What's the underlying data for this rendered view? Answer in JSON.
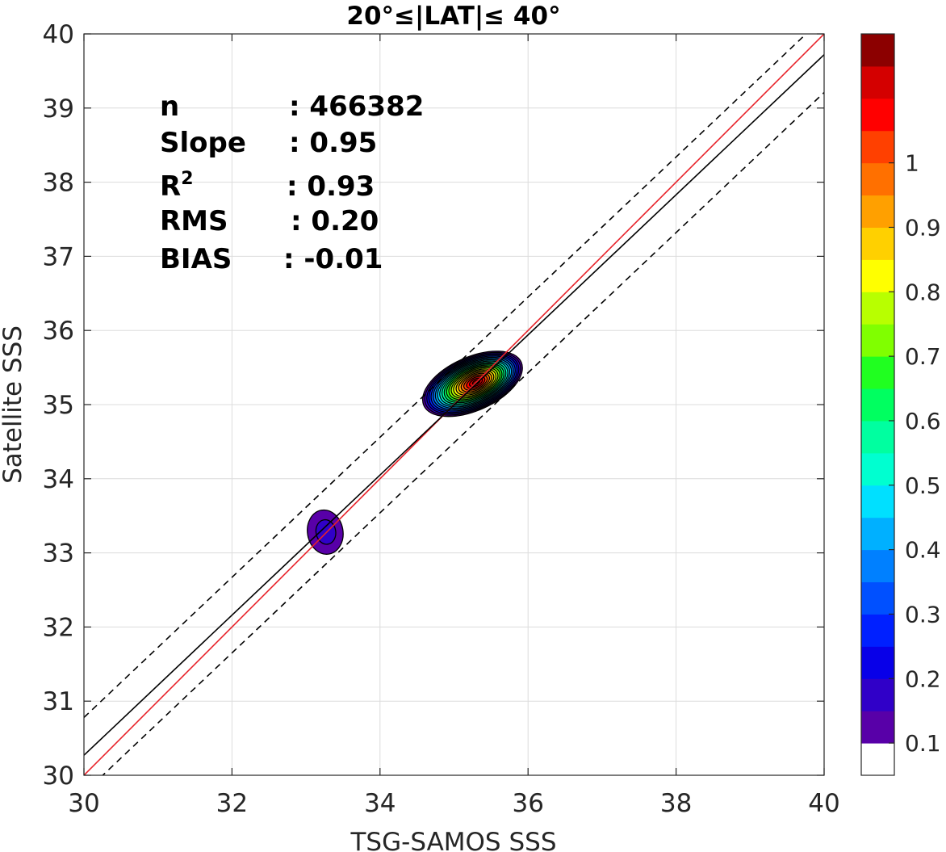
{
  "chart_data": {
    "type": "contour-density-scatter",
    "title": "20°≤|LAT|≤ 40°",
    "xlabel": "TSG-SAMOS SSS",
    "ylabel": "Satellite SSS",
    "xlim": [
      30,
      40
    ],
    "ylim": [
      30,
      40
    ],
    "xticks": [
      "30",
      "32",
      "34",
      "36",
      "38",
      "40"
    ],
    "yticks": [
      "30",
      "31",
      "32",
      "33",
      "34",
      "35",
      "36",
      "37",
      "38",
      "39",
      "40"
    ],
    "grid": true,
    "stats": [
      {
        "name": "n",
        "value": ": 466382"
      },
      {
        "name": "Slope",
        "value": ": 0.95"
      },
      {
        "name": "R",
        "sup": "2",
        "value": ": 0.93"
      },
      {
        "name": "RMS",
        "value": ": 0.20"
      },
      {
        "name": "BIAS",
        "value": ": -0.01"
      }
    ],
    "lines": [
      {
        "name": "one-to-one",
        "color": "#e8232a",
        "style": "solid",
        "points": [
          [
            30,
            30
          ],
          [
            40,
            40
          ]
        ]
      },
      {
        "name": "regression",
        "color": "#000000",
        "style": "solid",
        "points": [
          [
            30,
            30.27
          ],
          [
            40,
            39.72
          ]
        ]
      },
      {
        "name": "upper-bound",
        "color": "#000000",
        "style": "dashed",
        "points": [
          [
            30,
            30.78
          ],
          [
            40,
            40.23
          ]
        ]
      },
      {
        "name": "lower-bound",
        "color": "#000000",
        "style": "dashed",
        "points": [
          [
            30,
            29.76
          ],
          [
            40,
            39.21
          ]
        ]
      }
    ],
    "density_peaks": [
      {
        "cx": 35.25,
        "cy": 35.28,
        "rx": 0.72,
        "ry": 0.36,
        "angle": 24,
        "peak": 1.0,
        "levels": 20
      },
      {
        "cx": 33.26,
        "cy": 33.28,
        "rx": 0.24,
        "ry": 0.3,
        "angle": 10,
        "peak": 0.1,
        "levels": 1
      }
    ],
    "colorbar": {
      "colors": [
        "#ffffff",
        "#5800a8",
        "#3000c8",
        "#0800e8",
        "#0020ff",
        "#0050ff",
        "#0080ff",
        "#00b0ff",
        "#00e0ff",
        "#00ffd0",
        "#00ffa0",
        "#00ff60",
        "#20ff20",
        "#80ff00",
        "#b8ff00",
        "#ffff00",
        "#ffd000",
        "#ffa000",
        "#ff7000",
        "#ff4000",
        "#ff0000",
        "#d40000",
        "#8c0000"
      ],
      "tick_values": [
        0.1,
        0.2,
        0.3,
        0.4,
        0.5,
        0.6,
        0.7,
        0.8,
        0.9,
        1.0
      ],
      "tick_labels": [
        "0.1",
        "0.2",
        "0.3",
        "0.4",
        "0.5",
        "0.6",
        "0.7",
        "0.8",
        "0.9",
        "1"
      ]
    }
  }
}
